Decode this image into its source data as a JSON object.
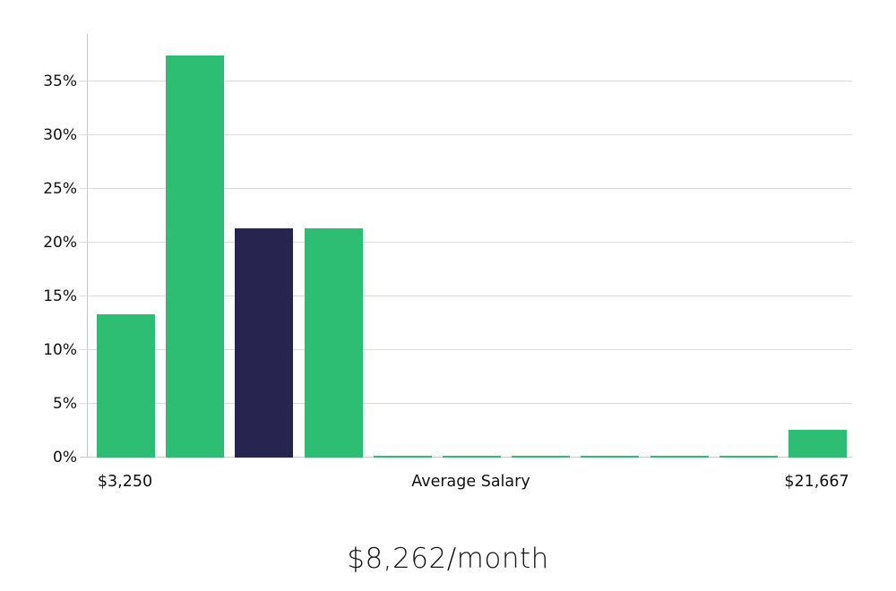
{
  "colors": {
    "green": "#2dbe73",
    "navy": "#282450",
    "grid": "#dcdcdc",
    "spine": "#c9c9c9",
    "text": "#111111"
  },
  "chart_data": {
    "type": "bar",
    "title": "$8,262/month",
    "xlabel": "",
    "ylabel": "",
    "grid": true,
    "legend": "none",
    "ylim": [
      0,
      39.4
    ],
    "ytick_step": 5,
    "yticks": [
      "0%",
      "5%",
      "10%",
      "15%",
      "20%",
      "25%",
      "30%",
      "35%"
    ],
    "values": [
      13.3,
      37.4,
      21.3,
      21.3,
      0.17,
      0.17,
      0.17,
      0.17,
      0.17,
      0.17,
      2.6
    ],
    "bar_colors": [
      "green",
      "green",
      "navy",
      "green",
      "green",
      "green",
      "green",
      "green",
      "green",
      "green",
      "green"
    ],
    "xticks": [
      {
        "label": "$3,250",
        "bar": 0
      },
      {
        "label": "Average Salary",
        "bar": 5
      },
      {
        "label": "$21,667",
        "bar": 10
      }
    ]
  }
}
